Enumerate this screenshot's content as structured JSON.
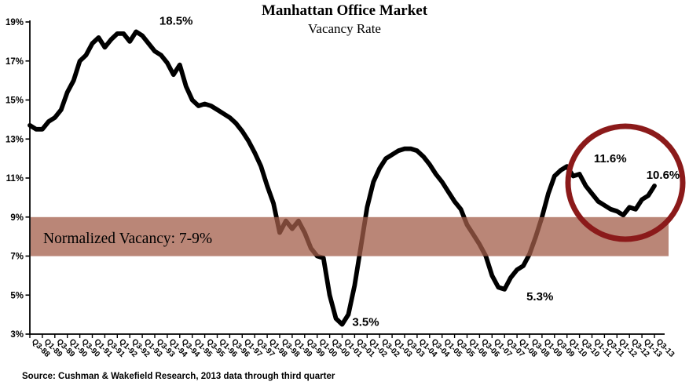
{
  "page": {
    "title": "Manhattan Office Market",
    "subtitle": "Vacancy Rate",
    "source": "Source: Cushman & Wakefield Research, 2013 data through third quarter"
  },
  "chart_data": {
    "type": "line",
    "title": "Manhattan Office Market",
    "subtitle": "Vacancy Rate",
    "xlabel": "",
    "ylabel": "",
    "ylim": [
      3,
      19
    ],
    "grid": false,
    "legend": false,
    "y_tick_values": [
      3,
      5,
      7,
      9,
      11,
      13,
      15,
      17,
      19
    ],
    "y_tick_labels": [
      "3%",
      "5%",
      "7%",
      "9%",
      "11%",
      "13%",
      "15%",
      "17%",
      "19%"
    ],
    "x_tick_every": 2,
    "x": [
      "Q3-88",
      "Q4-88",
      "Q1-89",
      "Q2-89",
      "Q3-89",
      "Q4-89",
      "Q1-90",
      "Q2-90",
      "Q3-90",
      "Q4-90",
      "Q1-91",
      "Q2-91",
      "Q3-91",
      "Q4-91",
      "Q1-92",
      "Q2-92",
      "Q3-92",
      "Q4-92",
      "Q1-93",
      "Q2-93",
      "Q3-93",
      "Q4-93",
      "Q1-94",
      "Q2-94",
      "Q3-94",
      "Q4-94",
      "Q1-95",
      "Q2-95",
      "Q3-95",
      "Q4-95",
      "Q1-96",
      "Q2-96",
      "Q3-96",
      "Q4-96",
      "Q1-97",
      "Q2-97",
      "Q3-97",
      "Q4-97",
      "Q1-98",
      "Q2-98",
      "Q3-98",
      "Q4-98",
      "Q1-99",
      "Q2-99",
      "Q3-99",
      "Q4-99",
      "Q1-00",
      "Q2-00",
      "Q3-00",
      "Q4-00",
      "Q1-01",
      "Q2-01",
      "Q3-01",
      "Q4-01",
      "Q1-02",
      "Q2-02",
      "Q3-02",
      "Q4-02",
      "Q1-03",
      "Q2-03",
      "Q3-03",
      "Q4-03",
      "Q1-04",
      "Q2-04",
      "Q3-04",
      "Q4-04",
      "Q1-05",
      "Q2-05",
      "Q3-05",
      "Q4-05",
      "Q1-06",
      "Q2-06",
      "Q3-06",
      "Q4-06",
      "Q1-07",
      "Q2-07",
      "Q3-07",
      "Q4-07",
      "Q1-08",
      "Q2-08",
      "Q3-08",
      "Q4-08",
      "Q1-09",
      "Q2-09",
      "Q3-09",
      "Q4-09",
      "Q1-10",
      "Q2-10",
      "Q3-10",
      "Q4-10",
      "Q1-11",
      "Q2-11",
      "Q3-11",
      "Q4-11",
      "Q1-12",
      "Q2-12",
      "Q3-12",
      "Q4-12",
      "Q1-13",
      "Q2-13",
      "Q3-13"
    ],
    "series": [
      {
        "name": "Vacancy Rate",
        "color": "#000000",
        "values": [
          13.7,
          13.5,
          13.5,
          13.9,
          14.1,
          14.5,
          15.4,
          16.0,
          17.0,
          17.3,
          17.9,
          18.2,
          17.7,
          18.1,
          18.4,
          18.4,
          18.0,
          18.5,
          18.3,
          17.9,
          17.5,
          17.3,
          16.9,
          16.3,
          16.8,
          15.7,
          15.0,
          14.7,
          14.8,
          14.7,
          14.5,
          14.3,
          14.1,
          13.8,
          13.4,
          12.9,
          12.3,
          11.6,
          10.6,
          9.7,
          8.2,
          8.8,
          8.4,
          8.8,
          8.2,
          7.4,
          7.0,
          6.9,
          5.0,
          3.8,
          3.5,
          4.0,
          5.5,
          7.5,
          9.5,
          10.8,
          11.5,
          12.0,
          12.2,
          12.4,
          12.5,
          12.5,
          12.4,
          12.1,
          11.7,
          11.2,
          10.8,
          10.3,
          9.8,
          9.4,
          8.6,
          8.1,
          7.6,
          7.0,
          6.0,
          5.4,
          5.3,
          5.9,
          6.3,
          6.5,
          7.1,
          8.0,
          9.0,
          10.2,
          11.1,
          11.4,
          11.6,
          11.1,
          11.2,
          10.6,
          10.2,
          9.8,
          9.6,
          9.4,
          9.3,
          9.1,
          9.5,
          9.4,
          9.9,
          10.1,
          10.6
        ]
      }
    ],
    "band": {
      "label": "Normalized Vacancy: 7-9%",
      "from": 7,
      "to": 9,
      "color": "#A35D49",
      "opacity": 0.75
    },
    "annotations": [
      {
        "text": "18.5%",
        "quarter": "Q4-92",
        "value": 18.5
      },
      {
        "text": "3.5%",
        "quarter": "Q1-01",
        "value": 3.5
      },
      {
        "text": "5.3%",
        "quarter": "Q3-07",
        "value": 5.3
      },
      {
        "text": "11.6%",
        "quarter": "Q1-10",
        "value": 11.6
      },
      {
        "text": "10.6%",
        "quarter": "Q3-13",
        "value": 10.6
      }
    ],
    "highlight_circle": {
      "color": "#8B1A1A",
      "around": "2010-2013 recovery period"
    }
  }
}
